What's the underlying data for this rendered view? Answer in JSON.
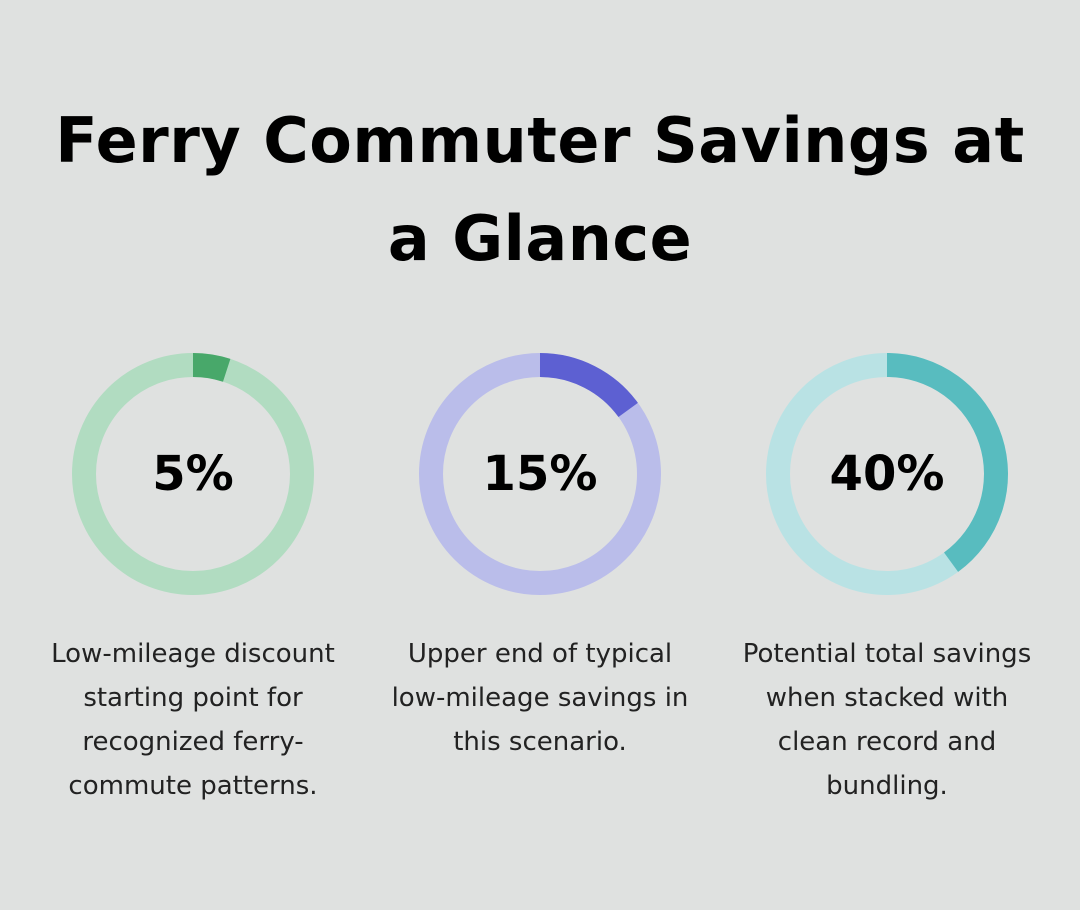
{
  "title": "Ferry Commuter Savings at a Glance",
  "chart_data": [
    {
      "type": "pie",
      "value": 5,
      "label": "5%",
      "caption": "Low-mileage discount starting point for recognized ferry-commute patterns.",
      "colors": {
        "track": "#b1dcc1",
        "fill": "#48a86a"
      }
    },
    {
      "type": "pie",
      "value": 15,
      "label": "15%",
      "caption": "Upper end of typical low-mileage savings in this scenario.",
      "colors": {
        "track": "#babdea",
        "fill": "#5d60d2"
      }
    },
    {
      "type": "pie",
      "value": 40,
      "label": "40%",
      "caption": "Potential total savings when stacked with clean record and bundling.",
      "colors": {
        "track": "#b9e2e4",
        "fill": "#58bcbf"
      }
    }
  ]
}
